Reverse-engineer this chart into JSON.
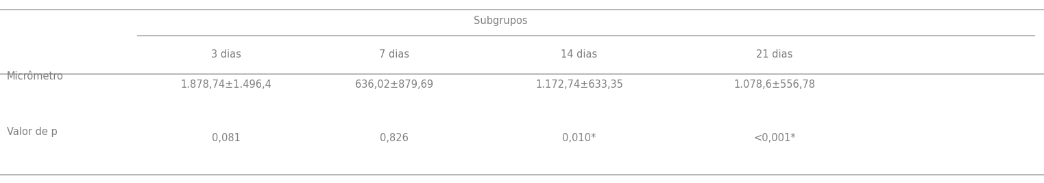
{
  "title_group": "Subgrupos",
  "col_headers": [
    "3 dias",
    "7 dias",
    "14 dias",
    "21 dias"
  ],
  "row_labels": [
    "Micrômetro",
    "Valor de p"
  ],
  "data": [
    [
      "1.878,74±1.496,4",
      "636,02±879,69",
      "1.172,74±633,35",
      "1.078,6±556,78"
    ],
    [
      "0,081",
      "0,826",
      "0,010*",
      "<0,001*"
    ]
  ],
  "bg_color": "#ffffff",
  "text_color": "#7f7f7f",
  "line_color": "#aaaaaa",
  "font_size": 10.5
}
